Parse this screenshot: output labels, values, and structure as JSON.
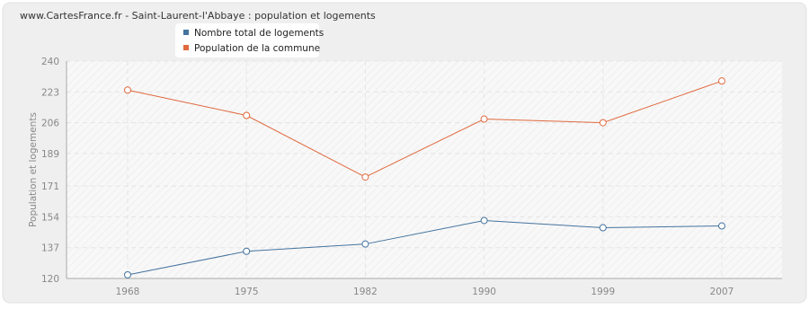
{
  "chart_data": {
    "type": "line",
    "title": "www.CartesFrance.fr - Saint-Laurent-l'Abbaye : population et logements",
    "y_label": "Population et logements",
    "categories": [
      "1968",
      "1975",
      "1982",
      "1990",
      "1999",
      "2007"
    ],
    "series": [
      {
        "name": "Nombre total de logements",
        "color": "#44739f",
        "values": [
          122,
          135,
          139,
          152,
          148,
          149
        ]
      },
      {
        "name": "Population de la commune",
        "color": "#e0693e",
        "values": [
          224,
          210,
          176,
          208,
          206,
          229
        ]
      }
    ],
    "ylim": [
      120,
      240
    ],
    "yticks": [
      120,
      137,
      154,
      171,
      189,
      206,
      223,
      240
    ],
    "grid": true
  }
}
